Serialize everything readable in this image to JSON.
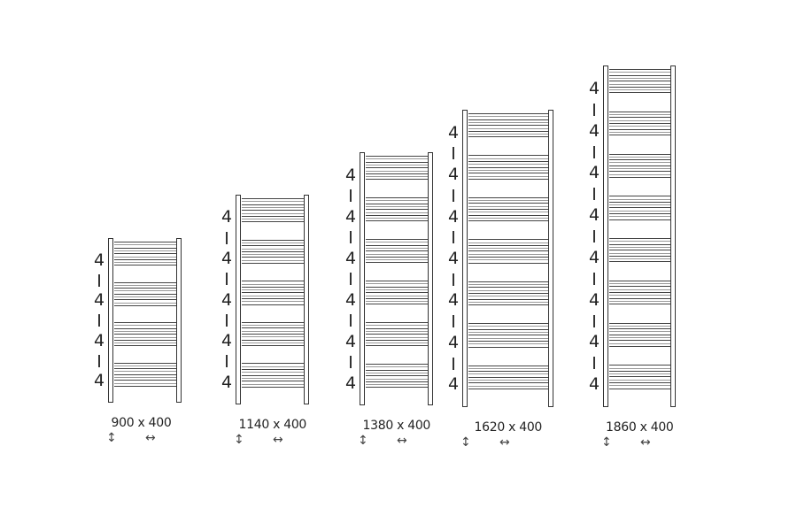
{
  "radiators": [
    {
      "size": "900 x 400",
      "sections": [
        "4",
        "4",
        "4",
        "4"
      ]
    },
    {
      "size": "1140 x 400",
      "sections": [
        "4",
        "4",
        "4",
        "4",
        "4"
      ]
    },
    {
      "size": "1380 x 400",
      "sections": [
        "4",
        "4",
        "4",
        "4",
        "4",
        "4"
      ]
    },
    {
      "size": "1620 x 400",
      "sections": [
        "4",
        "4",
        "4",
        "4",
        "4",
        "4",
        "4"
      ]
    },
    {
      "size": "1860 x 400",
      "sections": [
        "4",
        "4",
        "4",
        "4",
        "4",
        "4",
        "4",
        "4"
      ]
    }
  ],
  "separator": "|",
  "height_arrow_icon": "↕",
  "width_arrow_icon": "↔",
  "line_color": "#444444"
}
